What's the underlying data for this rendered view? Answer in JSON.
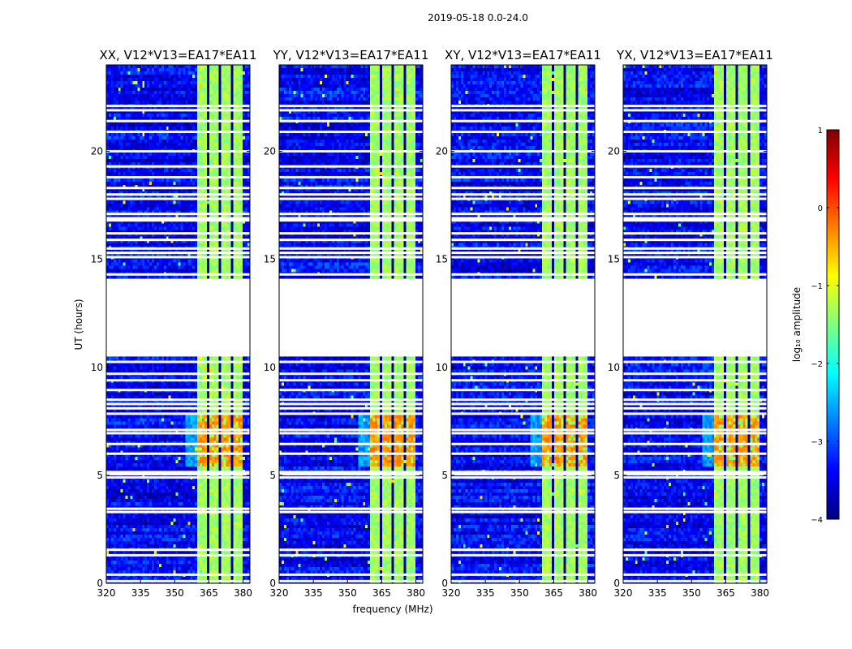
{
  "figure": {
    "suptitle": "2019-05-18 0.0-24.0",
    "ylabel": "UT (hours)",
    "xlabel": "frequency (MHz)"
  },
  "colorbar": {
    "label": "log₁₀ amplitude",
    "range": [
      -4,
      1
    ],
    "ticks": [
      {
        "value": 1,
        "label": "1"
      },
      {
        "value": 0,
        "label": "0"
      },
      {
        "value": -1,
        "label": "−1"
      },
      {
        "value": -2,
        "label": "−2"
      },
      {
        "value": -3,
        "label": "−3"
      },
      {
        "value": -4,
        "label": "−4"
      }
    ],
    "colors": [
      "#00007f",
      "#0000ff",
      "#007fff",
      "#00ffff",
      "#7fff7f",
      "#ffff00",
      "#ff7f00",
      "#ff0000",
      "#7f0000"
    ]
  },
  "chart_data": {
    "type": "heatmap",
    "x_range_mhz": [
      320,
      383
    ],
    "y_range_hours": [
      0,
      24
    ],
    "x_ticks": [
      320,
      335,
      350,
      365,
      380
    ],
    "y_ticks": [
      0,
      5,
      10,
      15,
      20
    ],
    "rfi_band_mhz": [
      360,
      380
    ],
    "no_data_hours": [
      [
        10.5,
        14.1
      ]
    ],
    "flagged_hours": [
      0.1,
      0.4,
      1.3,
      1.55,
      3.3,
      3.45,
      4.9,
      5.05,
      5.15,
      6.0,
      6.45,
      6.95,
      7.1,
      7.85,
      8.1,
      8.3,
      8.5,
      8.95,
      9.4,
      9.7,
      10.25,
      14.3,
      15.1,
      15.3,
      15.5,
      15.9,
      16.2,
      16.8,
      16.9,
      17.1,
      17.8,
      18.0,
      18.3,
      18.8,
      19.3,
      20.0,
      20.9,
      21.4,
      21.9,
      22.1
    ],
    "panels": [
      {
        "title": "XX, V12*V13=EA17*EA11"
      },
      {
        "title": "YY, V12*V13=EA17*EA11"
      },
      {
        "title": "XY, V12*V13=EA17*EA11"
      },
      {
        "title": "YX, V12*V13=EA17*EA11"
      }
    ]
  }
}
